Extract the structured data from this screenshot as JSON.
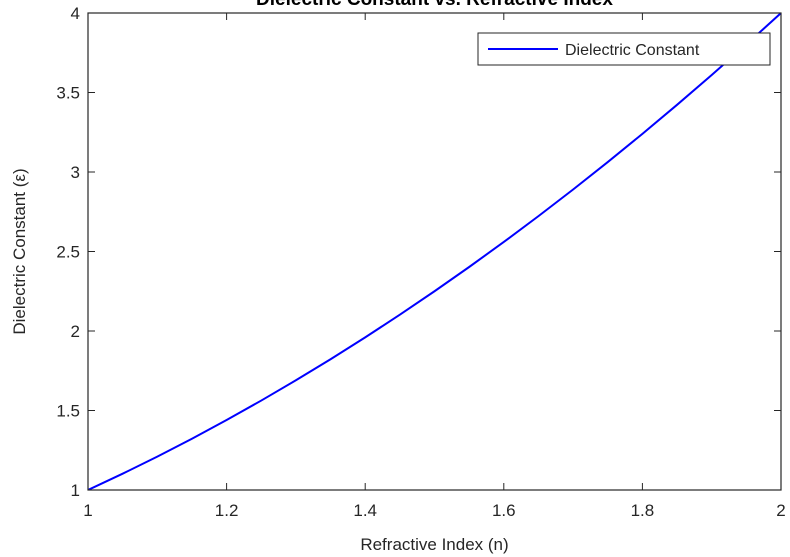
{
  "chart_data": {
    "type": "line",
    "title": "Dielectric Constant vs. Refractive Index",
    "xlabel": "Refractive Index (n)",
    "ylabel": "Dielectric Constant (ε)",
    "xlim": [
      1,
      2
    ],
    "ylim": [
      1,
      4
    ],
    "xticks": [
      1,
      1.2,
      1.4,
      1.6,
      1.8,
      2
    ],
    "xtick_labels": [
      "1",
      "1.2",
      "1.4",
      "1.6",
      "1.8",
      "2"
    ],
    "yticks": [
      1,
      1.5,
      2,
      2.5,
      3,
      3.5,
      4
    ],
    "ytick_labels": [
      "1",
      "1.5",
      "2",
      "2.5",
      "3",
      "3.5",
      "4"
    ],
    "grid": false,
    "legend_position": "top-right",
    "series": [
      {
        "name": "Dielectric Constant",
        "color": "#0000ff",
        "x": [
          1,
          1.05,
          1.1,
          1.15,
          1.2,
          1.25,
          1.3,
          1.35,
          1.4,
          1.45,
          1.5,
          1.55,
          1.6,
          1.65,
          1.7,
          1.75,
          1.8,
          1.85,
          1.9,
          1.95,
          2
        ],
        "y": [
          1,
          1.1025,
          1.21,
          1.3225,
          1.44,
          1.5625,
          1.69,
          1.8225,
          1.96,
          2.1025,
          2.25,
          2.4025,
          2.56,
          2.7225,
          2.89,
          3.0625,
          3.24,
          3.4225,
          3.61,
          3.8025,
          4
        ]
      }
    ]
  }
}
